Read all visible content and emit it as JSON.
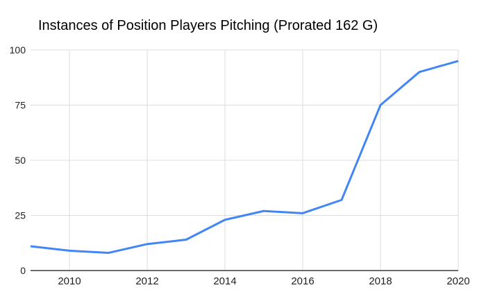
{
  "chart_data": {
    "type": "line",
    "title": "Instances of Position Players Pitching (Prorated 162 G)",
    "x": [
      2009,
      2010,
      2011,
      2012,
      2013,
      2014,
      2015,
      2016,
      2017,
      2018,
      2019,
      2020
    ],
    "values": [
      11,
      9,
      8,
      12,
      14,
      23,
      27,
      26,
      32,
      75,
      90,
      95
    ],
    "xlabel": "",
    "ylabel": "",
    "xlim": [
      2009,
      2020
    ],
    "ylim": [
      0,
      100
    ],
    "x_ticks": [
      2010,
      2012,
      2014,
      2016,
      2018,
      2020
    ],
    "y_ticks": [
      0,
      25,
      50,
      75,
      100
    ],
    "grid": true,
    "legend": "none",
    "colors": {
      "line": "#4285f4",
      "grid": "#dcdcdc",
      "axis": "#6b6b6b",
      "tick_label": "#1f1f1f",
      "title": "#000000",
      "background": "#ffffff"
    }
  }
}
